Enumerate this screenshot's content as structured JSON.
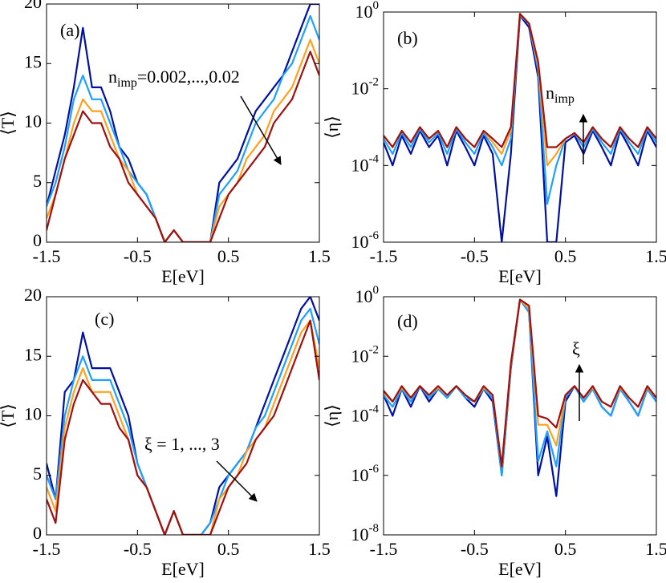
{
  "chart_data": [
    {
      "type": "line",
      "panel_label": "(a)",
      "ylabel": "⟨T⟩",
      "xlabel": "E[eV]",
      "log_y": false,
      "xlim": [
        -1.5,
        1.5
      ],
      "ylim": [
        0,
        20
      ],
      "xticks": [
        -1.5,
        -0.5,
        0.5,
        1.5
      ],
      "yticks": [
        0,
        5,
        10,
        15,
        20
      ],
      "annotation": {
        "text": "n",
        "sub": "imp",
        "rest": "=0.002,...,0.02"
      },
      "x": [
        -1.5,
        -1.4,
        -1.3,
        -1.2,
        -1.1,
        -1.0,
        -0.9,
        -0.8,
        -0.7,
        -0.6,
        -0.5,
        -0.4,
        -0.3,
        -0.2,
        -0.1,
        0,
        0.1,
        0.2,
        0.3,
        0.4,
        0.5,
        0.6,
        0.7,
        0.8,
        0.9,
        1.0,
        1.1,
        1.2,
        1.3,
        1.4,
        1.5
      ],
      "series": [
        {
          "color": "#00109f",
          "values": [
            3,
            6,
            9,
            13,
            18,
            13,
            13,
            11,
            8,
            7,
            5,
            4,
            2,
            0,
            1,
            0,
            0,
            0,
            0,
            5,
            6,
            7,
            9,
            11,
            12,
            13,
            14,
            16,
            18,
            20,
            20
          ]
        },
        {
          "color": "#1ea0ff",
          "values": [
            3,
            5,
            8,
            12,
            14,
            12,
            12,
            10,
            8,
            6,
            5,
            4,
            2,
            0,
            1,
            0,
            0,
            0,
            0,
            4,
            5,
            6,
            8,
            10,
            11,
            12,
            14,
            15,
            17,
            19,
            17
          ]
        },
        {
          "color": "#ffa020",
          "values": [
            2,
            4,
            7,
            10,
            12,
            11,
            11,
            9,
            7,
            6,
            4,
            3,
            2,
            0,
            1,
            0,
            0,
            0,
            0,
            3,
            4,
            5,
            7,
            8,
            9,
            11,
            12,
            13,
            15,
            17,
            15
          ]
        },
        {
          "color": "#9f1010",
          "values": [
            1,
            4,
            7,
            9,
            11,
            10,
            10,
            8,
            7,
            5,
            4,
            3,
            2,
            0,
            1,
            0,
            0,
            0,
            0,
            2,
            4,
            5,
            6,
            7,
            8,
            10,
            11,
            12,
            14,
            16,
            14
          ]
        }
      ]
    },
    {
      "type": "line",
      "panel_label": "(b)",
      "ylabel": "⟨η⟩",
      "xlabel": "E[eV]",
      "log_y": true,
      "xlim": [
        -1.5,
        1.5
      ],
      "ylim": [
        1e-06,
        1
      ],
      "xticks": [
        -1.5,
        -0.5,
        0.5,
        1.5
      ],
      "yticks": [
        {
          "value": 1e-06,
          "label": "10",
          "sup": "-6"
        },
        {
          "value": 0.0001,
          "label": "10",
          "sup": "-4"
        },
        {
          "value": 0.01,
          "label": "10",
          "sup": "-2"
        },
        {
          "value": 1,
          "label": "10",
          "sup": "0"
        }
      ],
      "annotation": {
        "text": "n",
        "sub": "imp"
      },
      "x": [
        -1.5,
        -1.4,
        -1.3,
        -1.2,
        -1.1,
        -1.0,
        -0.9,
        -0.8,
        -0.7,
        -0.6,
        -0.5,
        -0.4,
        -0.3,
        -0.2,
        -0.1,
        0,
        0.1,
        0.2,
        0.3,
        0.4,
        0.5,
        0.6,
        0.7,
        0.8,
        0.9,
        1.0,
        1.1,
        1.2,
        1.3,
        1.4,
        1.5
      ],
      "series": [
        {
          "color": "#00109f",
          "values": [
            0.0004,
            0.0001,
            0.0006,
            0.0002,
            0.0008,
            0.0003,
            0.0006,
            0.0001,
            0.0008,
            0.0003,
            0.0001,
            0.0006,
            0.0002,
            1e-06,
            0.0002,
            0.8,
            0.4,
            0.02,
            1e-06,
            1e-06,
            0.0004,
            0.0006,
            0.0002,
            0.0008,
            0.0003,
            0.0001,
            0.0008,
            0.0003,
            0.0001,
            0.0008,
            0.0003
          ]
        },
        {
          "color": "#1ea0ff",
          "values": [
            0.0005,
            0.0002,
            0.0007,
            0.0003,
            0.0009,
            0.0004,
            0.0007,
            0.0002,
            0.0009,
            0.0004,
            0.0002,
            0.0007,
            0.0003,
            0.0001,
            0.0005,
            0.8,
            0.5,
            0.03,
            1e-05,
            0.0001,
            0.0005,
            0.0007,
            0.0003,
            0.0009,
            0.0004,
            0.0002,
            0.0009,
            0.0004,
            0.0002,
            0.0009,
            0.0004
          ]
        },
        {
          "color": "#ffa020",
          "values": [
            0.0006,
            0.0003,
            0.0008,
            0.0004,
            0.001,
            0.0005,
            0.0008,
            0.0003,
            0.001,
            0.0005,
            0.0003,
            0.0008,
            0.0004,
            0.0002,
            0.0008,
            0.9,
            0.5,
            0.04,
            0.0001,
            0.0002,
            0.0005,
            0.0007,
            0.0004,
            0.001,
            0.0005,
            0.0003,
            0.001,
            0.0005,
            0.0003,
            0.001,
            0.0005
          ]
        },
        {
          "color": "#9f1010",
          "values": [
            0.0006,
            0.0003,
            0.0008,
            0.0004,
            0.001,
            0.0005,
            0.0008,
            0.0003,
            0.001,
            0.0005,
            0.0003,
            0.0008,
            0.0005,
            0.0003,
            0.001,
            0.9,
            0.5,
            0.05,
            0.0003,
            0.0003,
            0.0005,
            0.0007,
            0.0004,
            0.001,
            0.0005,
            0.0003,
            0.001,
            0.0005,
            0.0003,
            0.001,
            0.0005
          ]
        }
      ]
    },
    {
      "type": "line",
      "panel_label": "(c)",
      "ylabel": "⟨T⟩",
      "xlabel": "E[eV]",
      "log_y": false,
      "xlim": [
        -1.5,
        1.5
      ],
      "ylim": [
        0,
        20
      ],
      "xticks": [
        -1.5,
        -0.5,
        0.5,
        1.5
      ],
      "yticks": [
        0,
        5,
        10,
        15,
        20
      ],
      "annotation": {
        "text": "ξ = 1, ..., 3"
      },
      "x": [
        -1.5,
        -1.4,
        -1.3,
        -1.2,
        -1.1,
        -1.0,
        -0.9,
        -0.8,
        -0.7,
        -0.6,
        -0.5,
        -0.4,
        -0.3,
        -0.2,
        -0.1,
        0,
        0.1,
        0.2,
        0.3,
        0.4,
        0.5,
        0.6,
        0.7,
        0.8,
        0.9,
        1.0,
        1.1,
        1.2,
        1.3,
        1.4,
        1.5
      ],
      "series": [
        {
          "color": "#00109f",
          "values": [
            6,
            3,
            12,
            13,
            17,
            14,
            14,
            14,
            12,
            10,
            6,
            4,
            2,
            0,
            2,
            0,
            0,
            0,
            1,
            4,
            5,
            6,
            7,
            9,
            11,
            13,
            15,
            17,
            19,
            20,
            18
          ]
        },
        {
          "color": "#1ea0ff",
          "values": [
            5,
            3,
            10,
            13,
            15,
            13,
            13,
            13,
            11,
            9,
            6,
            4,
            2,
            0,
            2,
            0,
            0,
            0,
            1,
            3,
            5,
            6,
            7,
            9,
            10,
            12,
            14,
            16,
            18,
            19,
            16
          ]
        },
        {
          "color": "#ffa020",
          "values": [
            4,
            2,
            9,
            12,
            14,
            12,
            12,
            12,
            10,
            8,
            5,
            4,
            2,
            0,
            2,
            0,
            0,
            0,
            0,
            3,
            4,
            5,
            7,
            8,
            9,
            11,
            13,
            15,
            17,
            18,
            14
          ]
        },
        {
          "color": "#9f1010",
          "values": [
            3,
            1,
            8,
            11,
            13,
            12,
            11,
            11,
            9,
            8,
            5,
            4,
            2,
            0,
            2,
            0,
            0,
            0,
            0,
            2,
            4,
            5,
            6,
            8,
            9,
            10,
            12,
            14,
            16,
            18,
            13
          ]
        }
      ]
    },
    {
      "type": "line",
      "panel_label": "(d)",
      "ylabel": "⟨η⟩",
      "xlabel": "E[eV]",
      "log_y": true,
      "xlim": [
        -1.5,
        1.5
      ],
      "ylim": [
        1e-08,
        1
      ],
      "xticks": [
        -1.5,
        -0.5,
        0.5,
        1.5
      ],
      "yticks": [
        {
          "value": 1e-08,
          "label": "10",
          "sup": "-8"
        },
        {
          "value": 1e-06,
          "label": "10",
          "sup": "-6"
        },
        {
          "value": 0.0001,
          "label": "10",
          "sup": "-4"
        },
        {
          "value": 0.01,
          "label": "10",
          "sup": "-2"
        },
        {
          "value": 1,
          "label": "10",
          "sup": "0"
        }
      ],
      "annotation": {
        "text": "ξ"
      },
      "x": [
        -1.5,
        -1.4,
        -1.3,
        -1.2,
        -1.1,
        -1.0,
        -0.9,
        -0.8,
        -0.7,
        -0.6,
        -0.5,
        -0.4,
        -0.3,
        -0.2,
        -0.1,
        0,
        0.1,
        0.2,
        0.3,
        0.4,
        0.5,
        0.6,
        0.7,
        0.8,
        0.9,
        1.0,
        1.1,
        1.2,
        1.3,
        1.4,
        1.5
      ],
      "series": [
        {
          "color": "#00109f",
          "values": [
            0.0005,
            0.0001,
            0.0008,
            0.0002,
            0.001,
            0.0003,
            0.0008,
            0.0004,
            0.001,
            0.0004,
            0.0002,
            0.0008,
            0.0003,
            1e-06,
            0.004,
            0.8,
            0.3,
            1e-06,
            2e-05,
            2e-07,
            0.0003,
            0.001,
            0.0003,
            0.0008,
            0.0002,
            0.0001,
            0.0008,
            0.0003,
            0.0001,
            0.0008,
            0.0003
          ]
        },
        {
          "color": "#1ea0ff",
          "values": [
            0.0005,
            0.0002,
            0.0008,
            0.0003,
            0.001,
            0.0004,
            0.0008,
            0.0004,
            0.001,
            0.0004,
            0.0003,
            0.0008,
            0.0004,
            1e-06,
            0.005,
            0.8,
            0.3,
            3e-06,
            3e-05,
            2e-06,
            0.0004,
            0.001,
            0.0003,
            0.0008,
            0.0002,
            0.0001,
            0.0008,
            0.0003,
            0.0001,
            0.0008,
            0.0003
          ]
        },
        {
          "color": "#ffa020",
          "values": [
            0.0006,
            0.0003,
            0.0009,
            0.0004,
            0.001,
            0.0005,
            0.0009,
            0.0005,
            0.001,
            0.0005,
            0.0003,
            0.0009,
            0.0005,
            2e-06,
            0.005,
            0.8,
            0.4,
            5e-05,
            5e-05,
            1e-05,
            0.0005,
            0.001,
            0.0004,
            0.0009,
            0.0003,
            0.0002,
            0.0009,
            0.0004,
            0.0002,
            0.0009,
            0.0004
          ]
        },
        {
          "color": "#9f1010",
          "values": [
            0.0007,
            0.0003,
            0.001,
            0.0004,
            0.001,
            0.0005,
            0.001,
            0.0005,
            0.001,
            0.0005,
            0.0003,
            0.001,
            0.0005,
            2e-06,
            0.006,
            0.8,
            0.5,
            0.0001,
            8e-05,
            4e-05,
            0.0005,
            0.001,
            0.0004,
            0.001,
            0.0003,
            0.0002,
            0.001,
            0.0004,
            0.0002,
            0.001,
            0.0004
          ]
        }
      ]
    }
  ]
}
